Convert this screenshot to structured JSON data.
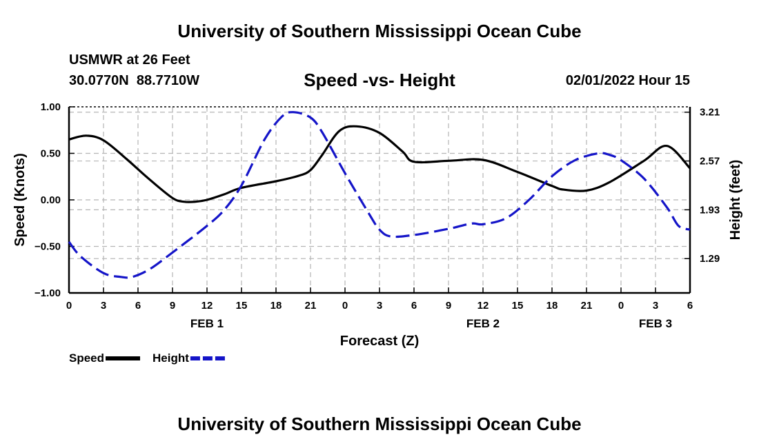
{
  "header": {
    "title": "University of Southern Mississippi Ocean Cube",
    "station": "USMWR at 26 Feet",
    "coords": "30.0770N  88.7710W",
    "date": "02/01/2022 Hour 15"
  },
  "footer": {
    "title": "University of Southern Mississippi Ocean Cube"
  },
  "chart_data": {
    "type": "line",
    "title": "Speed -vs- Height",
    "xlabel": "Forecast (Z)",
    "ylabel_left": "Speed (Knots)",
    "ylabel_right": "Height (feet)",
    "x_range_hours": [
      0,
      54
    ],
    "x_tick_hours": [
      0,
      3,
      6,
      9,
      12,
      15,
      18,
      21,
      24,
      27,
      30,
      33,
      36,
      39,
      42,
      45,
      48,
      51,
      54
    ],
    "x_tick_labels": [
      "0",
      "3",
      "6",
      "9",
      "12",
      "15",
      "18",
      "21",
      "0",
      "3",
      "6",
      "9",
      "12",
      "15",
      "18",
      "21",
      "0",
      "3",
      "6"
    ],
    "day_labels": [
      {
        "label": "FEB 1",
        "hour": 12
      },
      {
        "label": "FEB 2",
        "hour": 36
      },
      {
        "label": "FEB 3",
        "hour": 51
      }
    ],
    "left_axis": {
      "ylim": [
        -1.0,
        1.0
      ],
      "ticks": [
        -1.0,
        -0.5,
        0.0,
        0.5,
        1.0
      ],
      "tick_labels": [
        "−1.00",
        "−0.50",
        "0.00",
        "0.50",
        "1.00"
      ]
    },
    "right_axis": {
      "ylim": [
        0.84,
        3.28
      ],
      "ticks": [
        1.29,
        1.93,
        2.57,
        3.21
      ],
      "tick_labels": [
        "1.29",
        "1.93",
        "2.57",
        "3.21"
      ]
    },
    "grid": true,
    "series": [
      {
        "name": "Speed",
        "axis": "left",
        "color": "#000000",
        "dash": "solid",
        "x": [
          0,
          1.5,
          3,
          5,
          7,
          9,
          10,
          11,
          12,
          13.5,
          15,
          18,
          20,
          21,
          22,
          23.5,
          25,
          27,
          29,
          30,
          33,
          36,
          39,
          42,
          43,
          45,
          47,
          50,
          52,
          54
        ],
        "values": [
          0.65,
          0.69,
          0.64,
          0.44,
          0.22,
          0.02,
          -0.02,
          -0.02,
          0.0,
          0.06,
          0.13,
          0.2,
          0.26,
          0.32,
          0.48,
          0.74,
          0.79,
          0.72,
          0.52,
          0.41,
          0.42,
          0.43,
          0.3,
          0.15,
          0.11,
          0.1,
          0.19,
          0.42,
          0.58,
          0.34
        ]
      },
      {
        "name": "Height",
        "axis": "right",
        "color": "#1414c8",
        "dash": "dashed",
        "x": [
          0,
          1,
          3,
          4.5,
          5.5,
          7,
          9,
          12,
          13.5,
          15,
          17,
          18.5,
          19.5,
          21,
          22,
          24,
          26,
          27,
          28,
          30,
          33,
          35,
          36,
          38,
          40,
          42,
          44,
          46,
          47,
          48,
          50,
          52,
          53,
          54
        ],
        "values": [
          1.51,
          1.32,
          1.1,
          1.05,
          1.05,
          1.15,
          1.37,
          1.72,
          1.93,
          2.25,
          2.85,
          3.15,
          3.21,
          3.14,
          2.95,
          2.41,
          1.9,
          1.67,
          1.58,
          1.6,
          1.68,
          1.75,
          1.74,
          1.82,
          2.06,
          2.37,
          2.58,
          2.67,
          2.65,
          2.58,
          2.34,
          1.96,
          1.72,
          1.67
        ]
      }
    ],
    "legend": [
      {
        "label": "Speed",
        "color": "#000000",
        "dash": "solid"
      },
      {
        "label": "Height",
        "color": "#1414c8",
        "dash": "dashed"
      }
    ],
    "legend_position": "bottom-left"
  }
}
